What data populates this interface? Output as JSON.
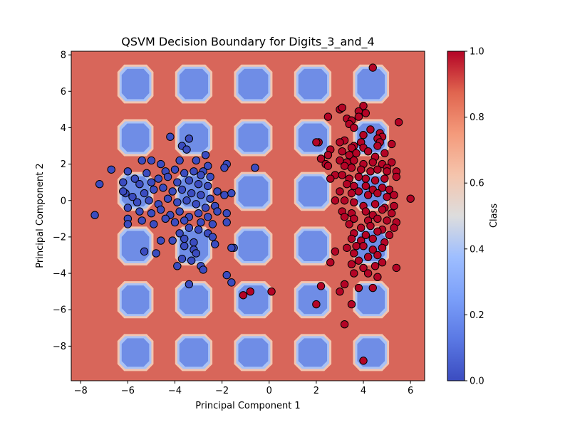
{
  "chart_data": {
    "type": "scatter",
    "title": "QSVM Decision Boundary for Digits_3_and_4",
    "xlabel": "Principal Component 1",
    "ylabel": "Principal Component 2",
    "xlim": [
      -8.4,
      6.6
    ],
    "ylim": [
      -9.9,
      8.2
    ],
    "x_ticks": [
      -8,
      -6,
      -4,
      -2,
      0,
      2,
      4,
      6
    ],
    "y_ticks": [
      -8,
      -6,
      -4,
      -2,
      0,
      2,
      4,
      6,
      8
    ],
    "grid": false,
    "colormap": "coolwarm",
    "background": {
      "description": "decision region filled with predicted class",
      "class_0_color": "#6f8de6",
      "class_1_color": "#d8665a",
      "band_pattern": {
        "x_band_centers": [
          -6.9,
          -4.45,
          -1.95,
          0.6,
          3.1,
          5.55
        ],
        "y_band_centers": [
          7.9,
          4.9,
          2.0,
          -1.0,
          -4.0,
          -6.9,
          -9.8
        ],
        "band_half_width": 0.55
      }
    },
    "colorbar": {
      "label": "Class",
      "min": 0.0,
      "max": 1.0,
      "ticks": [
        "0.0",
        "0.2",
        "0.4",
        "0.6",
        "0.8",
        "1.0"
      ]
    },
    "series": [
      {
        "class": 0,
        "color": "#3b4cc0",
        "points": [
          [
            -4.2,
            3.5
          ],
          [
            -3.7,
            3.0
          ],
          [
            -3.4,
            3.4
          ],
          [
            -3.5,
            2.8
          ],
          [
            -2.7,
            2.5
          ],
          [
            -1.8,
            2.0
          ],
          [
            -1.9,
            1.8
          ],
          [
            -2.6,
            1.9
          ],
          [
            -2.8,
            1.6
          ],
          [
            -3.1,
            2.2
          ],
          [
            -3.8,
            2.2
          ],
          [
            -4.6,
            2.0
          ],
          [
            -5.4,
            2.2
          ],
          [
            -5.0,
            2.2
          ],
          [
            -6.7,
            1.7
          ],
          [
            -6.0,
            1.6
          ],
          [
            -5.2,
            1.5
          ],
          [
            -5.7,
            1.2
          ],
          [
            -4.4,
            1.6
          ],
          [
            -4.0,
            1.7
          ],
          [
            -3.6,
            1.5
          ],
          [
            -3.2,
            1.6
          ],
          [
            -2.9,
            1.4
          ],
          [
            -2.5,
            1.3
          ],
          [
            -7.2,
            0.9
          ],
          [
            -6.2,
            1.0
          ],
          [
            -5.5,
            0.9
          ],
          [
            -5.0,
            1.0
          ],
          [
            -4.7,
            1.2
          ],
          [
            -4.3,
            1.3
          ],
          [
            -3.9,
            1.0
          ],
          [
            -3.4,
            1.1
          ],
          [
            -3.0,
            0.9
          ],
          [
            -2.6,
            0.8
          ],
          [
            -2.2,
            0.5
          ],
          [
            -1.9,
            0.3
          ],
          [
            -1.6,
            0.4
          ],
          [
            -0.6,
            1.8
          ],
          [
            -6.1,
            0.4
          ],
          [
            -6.2,
            0.5
          ],
          [
            -5.8,
            0.2
          ],
          [
            -5.3,
            0.4
          ],
          [
            -4.9,
            0.6
          ],
          [
            -4.5,
            0.7
          ],
          [
            -4.1,
            0.5
          ],
          [
            -3.7,
            0.6
          ],
          [
            -3.3,
            0.4
          ],
          [
            -2.9,
            0.3
          ],
          [
            -2.5,
            0.1
          ],
          [
            -5.6,
            -0.1
          ],
          [
            -5.1,
            0.0
          ],
          [
            -4.7,
            -0.2
          ],
          [
            -4.3,
            0.1
          ],
          [
            -3.9,
            -0.1
          ],
          [
            -3.5,
            0.0
          ],
          [
            -3.1,
            -0.2
          ],
          [
            -2.7,
            -0.4
          ],
          [
            -2.3,
            -0.3
          ],
          [
            -6.0,
            -0.4
          ],
          [
            -5.5,
            -0.6
          ],
          [
            -5.0,
            -0.7
          ],
          [
            -4.6,
            -0.5
          ],
          [
            -4.2,
            -0.8
          ],
          [
            -3.8,
            -0.6
          ],
          [
            -3.4,
            -0.9
          ],
          [
            -3.0,
            -0.7
          ],
          [
            -2.6,
            -0.9
          ],
          [
            -2.2,
            -0.6
          ],
          [
            -7.4,
            -0.8
          ],
          [
            -6.0,
            -1.0
          ],
          [
            -6.0,
            -1.3
          ],
          [
            -5.4,
            -1.1
          ],
          [
            -4.9,
            -1.3
          ],
          [
            -4.4,
            -1.0
          ],
          [
            -4.0,
            -1.2
          ],
          [
            -3.6,
            -1.1
          ],
          [
            -2.9,
            -1.2
          ],
          [
            -2.4,
            -1.3
          ],
          [
            -1.8,
            -1.2
          ],
          [
            -1.8,
            -0.7
          ],
          [
            -3.4,
            -1.5
          ],
          [
            -3.0,
            -1.6
          ],
          [
            -3.8,
            -1.8
          ],
          [
            -2.6,
            -1.8
          ],
          [
            -4.6,
            -2.2
          ],
          [
            -4.1,
            -2.2
          ],
          [
            -3.6,
            -2.1
          ],
          [
            -3.2,
            -2.3
          ],
          [
            -2.4,
            -2.0
          ],
          [
            -2.3,
            -2.4
          ],
          [
            -5.3,
            -2.8
          ],
          [
            -4.8,
            -2.9
          ],
          [
            -3.6,
            -2.5
          ],
          [
            -3.2,
            -2.7
          ],
          [
            -1.5,
            -2.6
          ],
          [
            -3.1,
            -2.9
          ],
          [
            -3.7,
            -3.2
          ],
          [
            -3.3,
            -3.3
          ],
          [
            -3.9,
            -3.6
          ],
          [
            -2.9,
            -3.6
          ],
          [
            -2.8,
            -3.8
          ],
          [
            -1.8,
            -4.1
          ],
          [
            -1.6,
            -4.5
          ],
          [
            -3.4,
            -4.6
          ],
          [
            -1.6,
            -2.6
          ]
        ]
      },
      {
        "class": 1,
        "color": "#b40426",
        "points": [
          [
            4.4,
            7.3
          ],
          [
            4.0,
            5.2
          ],
          [
            3.8,
            4.9
          ],
          [
            4.1,
            4.8
          ],
          [
            3.0,
            5.0
          ],
          [
            3.1,
            5.1
          ],
          [
            2.5,
            4.6
          ],
          [
            3.3,
            4.5
          ],
          [
            3.5,
            4.4
          ],
          [
            3.8,
            4.6
          ],
          [
            5.5,
            4.3
          ],
          [
            3.4,
            4.2
          ],
          [
            3.6,
            4.0
          ],
          [
            4.3,
            3.9
          ],
          [
            4.7,
            3.7
          ],
          [
            4.0,
            3.6
          ],
          [
            4.8,
            3.5
          ],
          [
            4.6,
            3.4
          ],
          [
            3.2,
            3.3
          ],
          [
            3.0,
            3.2
          ],
          [
            2.1,
            3.2
          ],
          [
            2.0,
            3.2
          ],
          [
            3.9,
            3.2
          ],
          [
            4.7,
            3.2
          ],
          [
            5.2,
            3.1
          ],
          [
            3.6,
            3.0
          ],
          [
            3.5,
            2.9
          ],
          [
            4.0,
            2.9
          ],
          [
            4.6,
            3.0
          ],
          [
            2.6,
            2.8
          ],
          [
            3.1,
            2.7
          ],
          [
            3.4,
            2.5
          ],
          [
            3.7,
            2.6
          ],
          [
            4.2,
            2.7
          ],
          [
            4.5,
            2.4
          ],
          [
            4.9,
            2.6
          ],
          [
            2.2,
            2.3
          ],
          [
            2.5,
            2.5
          ],
          [
            3.0,
            2.2
          ],
          [
            3.3,
            2.1
          ],
          [
            3.6,
            2.2
          ],
          [
            4.0,
            2.0
          ],
          [
            4.4,
            2.1
          ],
          [
            4.8,
            2.0
          ],
          [
            5.2,
            2.1
          ],
          [
            5.0,
            1.8
          ],
          [
            2.4,
            2.0
          ],
          [
            2.5,
            1.9
          ],
          [
            3.2,
            1.9
          ],
          [
            3.5,
            1.8
          ],
          [
            3.9,
            1.7
          ],
          [
            4.3,
            1.6
          ],
          [
            4.6,
            1.7
          ],
          [
            5.0,
            1.6
          ],
          [
            5.4,
            1.6
          ],
          [
            2.8,
            1.4
          ],
          [
            3.1,
            1.4
          ],
          [
            3.4,
            1.2
          ],
          [
            3.8,
            1.3
          ],
          [
            4.1,
            1.2
          ],
          [
            4.5,
            1.1
          ],
          [
            4.9,
            1.2
          ],
          [
            5.4,
            1.3
          ],
          [
            2.6,
            1.2
          ],
          [
            3.3,
            0.9
          ],
          [
            3.6,
            0.8
          ],
          [
            4.1,
            0.8
          ],
          [
            4.4,
            0.6
          ],
          [
            4.8,
            0.7
          ],
          [
            5.1,
            0.6
          ],
          [
            3.0,
            0.5
          ],
          [
            3.5,
            0.4
          ],
          [
            3.8,
            0.5
          ],
          [
            4.2,
            0.3
          ],
          [
            4.6,
            0.4
          ],
          [
            5.0,
            0.2
          ],
          [
            5.3,
            0.3
          ],
          [
            6.0,
            0.1
          ],
          [
            2.8,
            0.0
          ],
          [
            3.2,
            0.0
          ],
          [
            3.6,
            -0.1
          ],
          [
            4.0,
            -0.3
          ],
          [
            4.5,
            -0.2
          ],
          [
            4.9,
            -0.4
          ],
          [
            5.3,
            -0.3
          ],
          [
            3.1,
            -0.6
          ],
          [
            3.5,
            -0.7
          ],
          [
            4.1,
            -0.6
          ],
          [
            4.4,
            -0.8
          ],
          [
            4.8,
            -0.5
          ],
          [
            5.2,
            -0.7
          ],
          [
            3.2,
            -0.9
          ],
          [
            3.6,
            -1.0
          ],
          [
            4.2,
            -1.1
          ],
          [
            4.6,
            -1.0
          ],
          [
            5.0,
            -1.1
          ],
          [
            5.4,
            -1.2
          ],
          [
            3.4,
            -1.3
          ],
          [
            3.9,
            -1.5
          ],
          [
            4.3,
            -1.4
          ],
          [
            4.8,
            -1.6
          ],
          [
            5.3,
            -1.5
          ],
          [
            3.6,
            -1.8
          ],
          [
            4.1,
            -1.9
          ],
          [
            4.6,
            -1.7
          ],
          [
            5.1,
            -1.9
          ],
          [
            3.5,
            -2.1
          ],
          [
            3.9,
            -2.2
          ],
          [
            4.4,
            -2.1
          ],
          [
            4.9,
            -2.3
          ],
          [
            3.3,
            -2.6
          ],
          [
            3.7,
            -2.5
          ],
          [
            4.0,
            -2.5
          ],
          [
            4.4,
            -2.7
          ],
          [
            4.8,
            -2.6
          ],
          [
            2.8,
            -2.8
          ],
          [
            3.6,
            -2.9
          ],
          [
            3.8,
            -3.3
          ],
          [
            4.2,
            -3.1
          ],
          [
            4.6,
            -3.0
          ],
          [
            3.5,
            -3.5
          ],
          [
            4.0,
            -3.7
          ],
          [
            4.5,
            -3.6
          ],
          [
            4.8,
            -3.4
          ],
          [
            2.6,
            -3.4
          ],
          [
            3.6,
            -4.0
          ],
          [
            4.2,
            -4.0
          ],
          [
            4.6,
            -4.2
          ],
          [
            5.4,
            -3.7
          ],
          [
            3.8,
            -4.8
          ],
          [
            4.4,
            -4.8
          ],
          [
            3.0,
            -5.0
          ],
          [
            3.2,
            -4.6
          ],
          [
            3.5,
            -5.7
          ],
          [
            2.0,
            -5.7
          ],
          [
            2.2,
            -4.7
          ],
          [
            3.2,
            -6.8
          ],
          [
            4.0,
            -8.8
          ],
          [
            0.1,
            -5.0
          ],
          [
            -0.8,
            -5.0
          ],
          [
            -1.1,
            -5.2
          ]
        ]
      }
    ]
  }
}
